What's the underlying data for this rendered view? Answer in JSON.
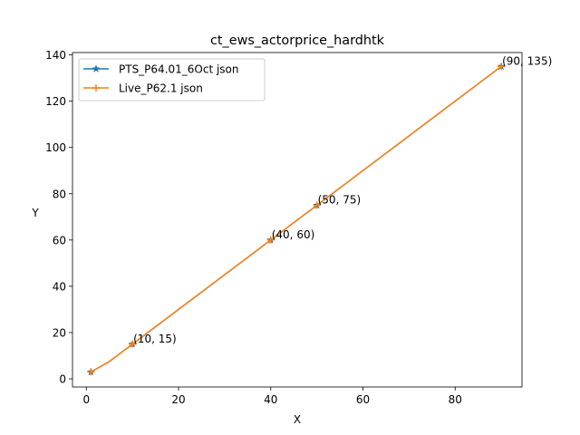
{
  "chart_data": {
    "type": "line",
    "title": "ct_ews_actorprice_hardhtk",
    "xlabel": "X",
    "ylabel": "Y",
    "xlim": [
      -3,
      94.5
    ],
    "ylim": [
      -3.5,
      141
    ],
    "xticks": [
      0,
      20,
      40,
      60,
      80
    ],
    "yticks": [
      0,
      20,
      40,
      60,
      80,
      100,
      120,
      140
    ],
    "grid": false,
    "legend_position": "upper-left",
    "series": [
      {
        "name": "PTS_P64.01_6Oct json",
        "color": "#1f77b4",
        "marker": "star",
        "x": [
          1,
          5,
          10,
          40,
          50,
          90
        ],
        "y": [
          3,
          7.5,
          15,
          60,
          75,
          135
        ]
      },
      {
        "name": "Live_P62.1 json",
        "color": "#ff7f0e",
        "marker": "plus",
        "x": [
          1,
          5,
          10,
          40,
          50,
          90
        ],
        "y": [
          3,
          7.5,
          15,
          60,
          75,
          135
        ]
      }
    ],
    "annotations": [
      {
        "text": "(10, 15)",
        "x": 10,
        "y": 15
      },
      {
        "text": "(40, 60)",
        "x": 40,
        "y": 60
      },
      {
        "text": "(50, 75)",
        "x": 50,
        "y": 75
      },
      {
        "text": "(90, 135)",
        "x": 90,
        "y": 135
      }
    ]
  }
}
